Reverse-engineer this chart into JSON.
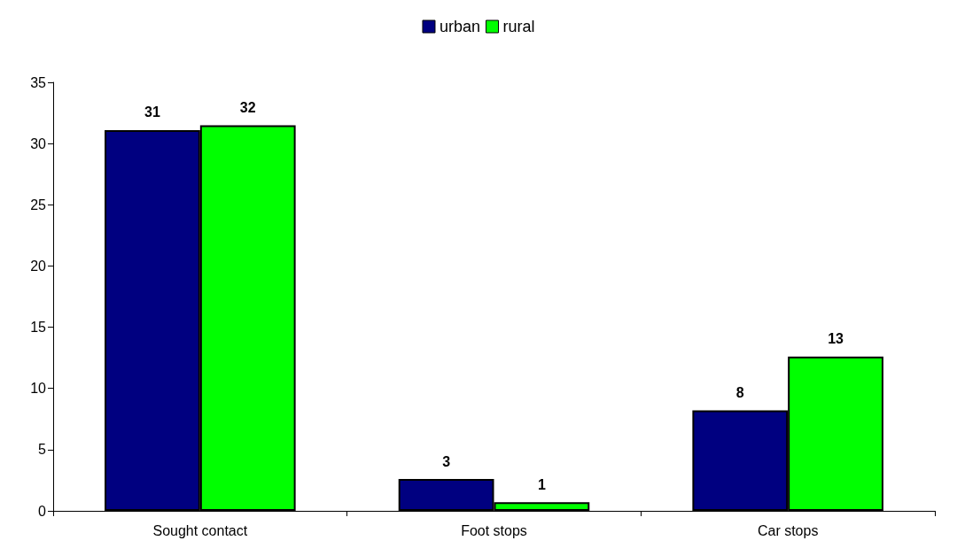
{
  "chart_data": {
    "type": "bar",
    "categories": [
      "Sought contact",
      "Foot stops",
      "Car stops"
    ],
    "series": [
      {
        "name": "urban",
        "color": "#000080",
        "values": [
          31.1,
          2.6,
          8.2
        ],
        "value_labels": [
          "31",
          "3",
          "8"
        ]
      },
      {
        "name": "rural",
        "color": "#00ff00",
        "values": [
          31.5,
          0.7,
          12.6
        ],
        "value_labels": [
          "32",
          "1",
          "13"
        ]
      }
    ],
    "ylim": [
      0,
      35
    ],
    "yticks": [
      0,
      5,
      10,
      15,
      20,
      25,
      30,
      35
    ],
    "grid": false,
    "legend": "top"
  }
}
